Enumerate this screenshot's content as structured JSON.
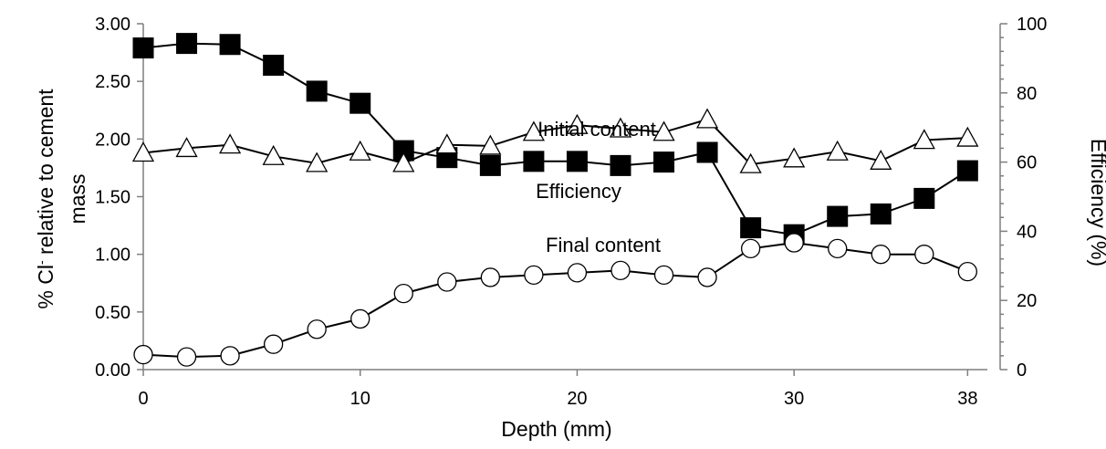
{
  "chart_data": {
    "type": "line",
    "x": [
      0,
      2,
      4,
      6,
      8,
      10,
      12,
      14,
      16,
      18,
      20,
      22,
      24,
      26,
      28,
      30,
      32,
      34,
      36,
      38
    ],
    "x_ticks": [
      0,
      10,
      20,
      30,
      38
    ],
    "xlabel": "Depth (mm)",
    "xlim": [
      0,
      39.5
    ],
    "ylabel_left": {
      "prefix": "% Cl",
      "sup": "-",
      "rest": " relative to cement",
      "line2": "mass"
    },
    "ylim_left": [
      0,
      3
    ],
    "y_ticks_left": [
      "0.00",
      "0.50",
      "1.00",
      "1.50",
      "2.00",
      "2.50",
      "3.00"
    ],
    "ylabel_right": "Efficiency (%)",
    "ylim_right": [
      0,
      100
    ],
    "y_ticks_right": [
      "0",
      "20",
      "40",
      "60",
      "80",
      "100"
    ],
    "grid": false,
    "series": [
      {
        "axis": "right",
        "marker": "filled-square",
        "color": "#000000",
        "values": [
          93,
          94.3,
          94,
          88,
          80.5,
          77,
          63.3,
          61.3,
          59,
          60.2,
          60.2,
          59,
          60,
          62.8,
          41,
          39,
          44.3,
          45,
          49.5,
          57.5
        ]
      },
      {
        "axis": "left",
        "marker": "open-triangle",
        "color": "#000000",
        "values": [
          1.88,
          1.92,
          1.95,
          1.85,
          1.79,
          1.89,
          1.79,
          1.95,
          1.94,
          2.06,
          2.12,
          2.09,
          2.06,
          2.17,
          1.78,
          1.83,
          1.89,
          1.81,
          1.99,
          2.01
        ]
      },
      {
        "axis": "left",
        "marker": "open-circle",
        "color": "#000000",
        "values": [
          0.13,
          0.11,
          0.12,
          0.22,
          0.35,
          0.44,
          0.66,
          0.76,
          0.8,
          0.82,
          0.84,
          0.86,
          0.82,
          0.8,
          1.05,
          1.1,
          1.05,
          1.0,
          1.0,
          0.85
        ]
      }
    ],
    "annotations": [
      {
        "text": "Initial content",
        "at": [
          26,
          2.21
        ]
      },
      {
        "text": "Efficiency",
        "at": [
          19.5,
          1.52
        ]
      },
      {
        "text": "Final content",
        "at": [
          25.5,
          1.09
        ]
      }
    ]
  }
}
